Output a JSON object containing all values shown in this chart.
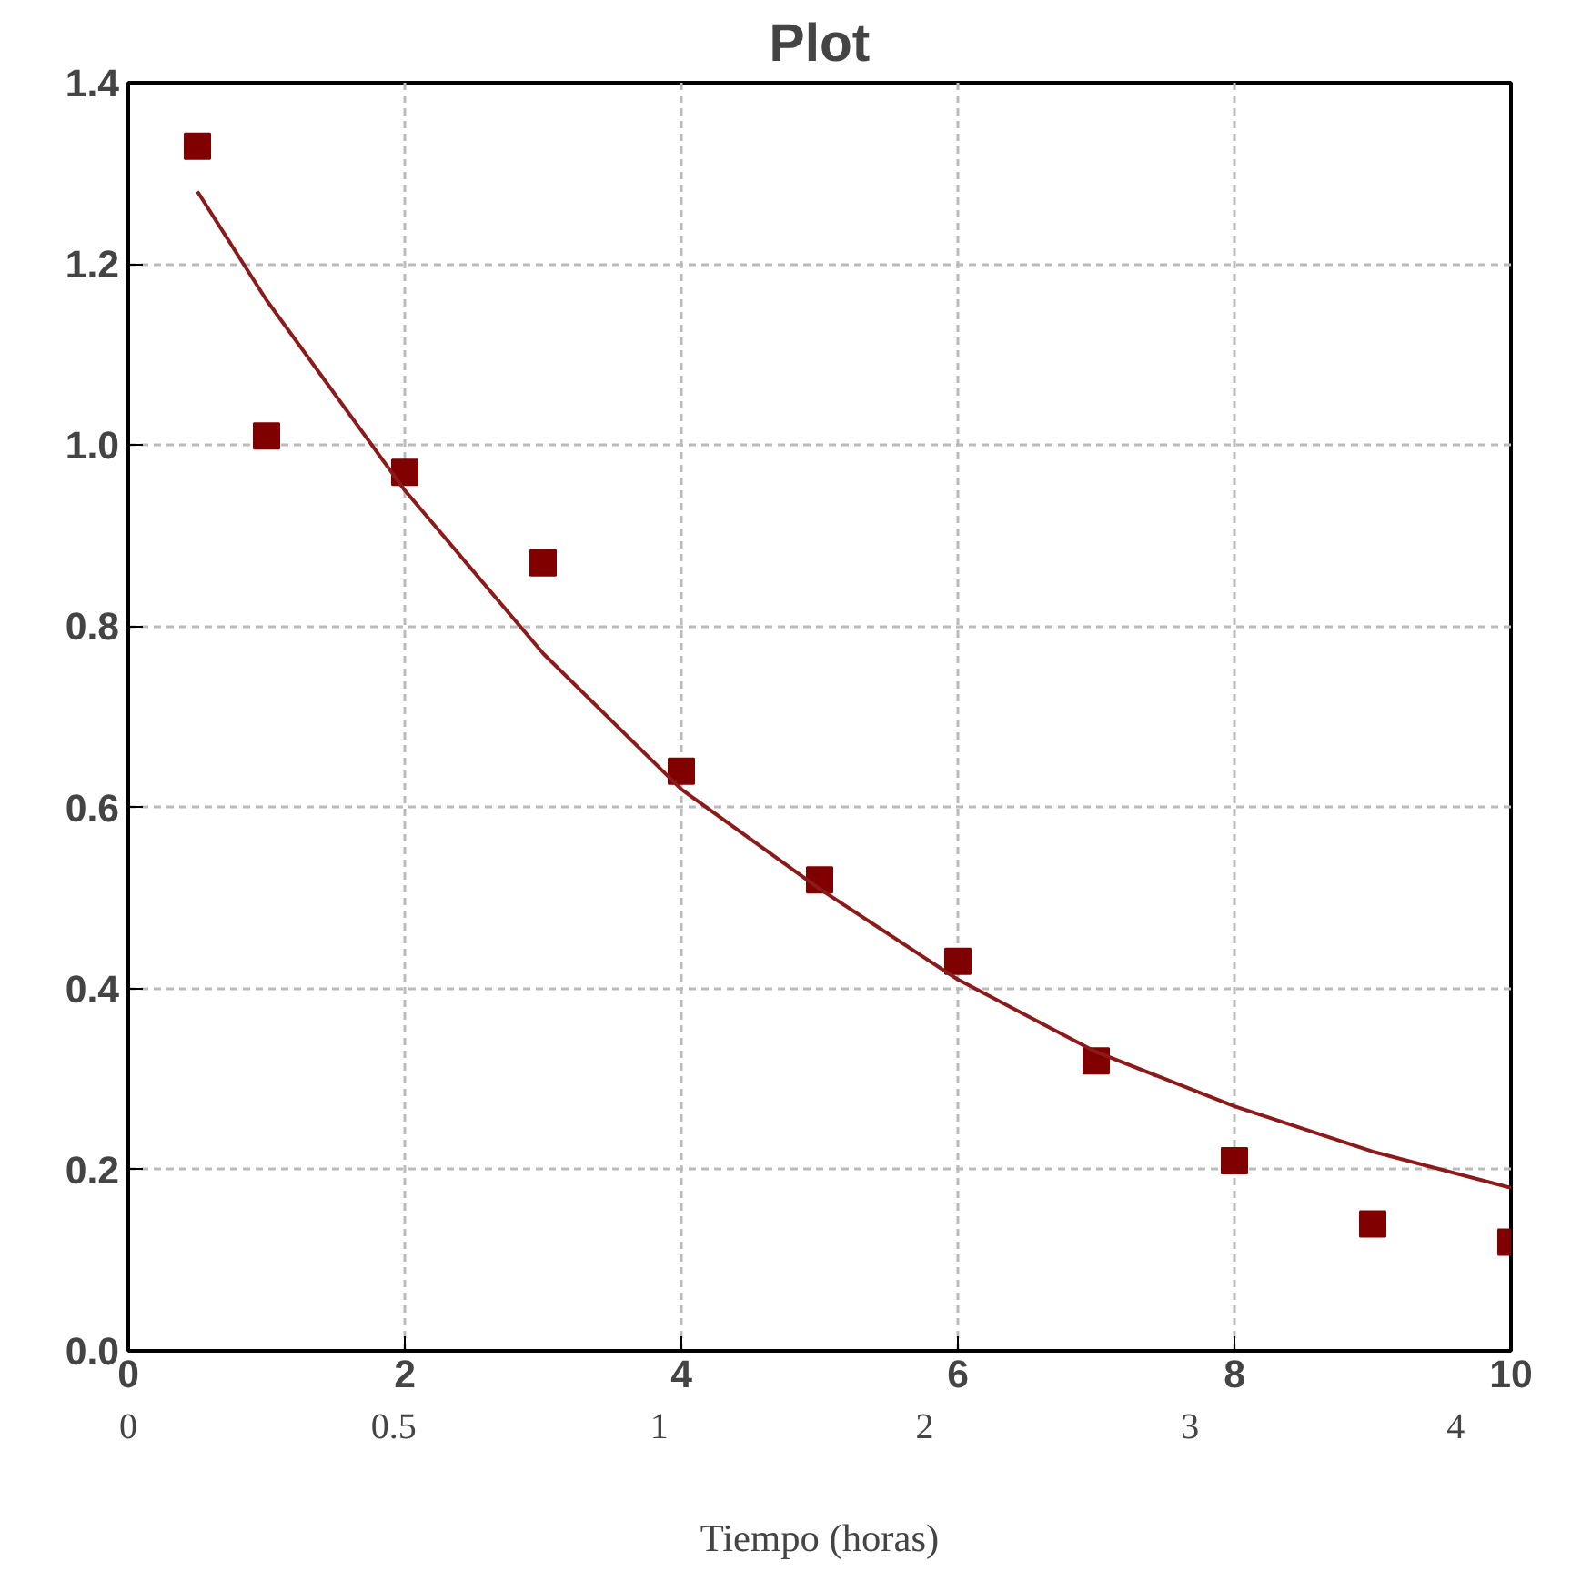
{
  "chart_data": {
    "type": "scatter",
    "title": "Plot",
    "xlabel": "Tiempo (horas)",
    "xlim": [
      0,
      10
    ],
    "xticks": [
      0,
      2,
      4,
      6,
      8,
      10
    ],
    "annotations": [
      "0",
      "0.5",
      "1",
      "2",
      "3",
      "4"
    ],
    "ylim": [
      0,
      1.4
    ],
    "yticks": [
      {
        "value": 0,
        "label": "0.0"
      },
      {
        "value": 0.2,
        "label": "0.2"
      },
      {
        "value": 0.4,
        "label": "0.4"
      },
      {
        "value": 0.6,
        "label": "0.6"
      },
      {
        "value": 0.8,
        "label": "0.8"
      },
      {
        "value": 1.0,
        "label": "1.0"
      },
      {
        "value": 1.2,
        "label": "1.2"
      },
      {
        "value": 1.4,
        "label": "1.4"
      }
    ],
    "grid": true,
    "series": [
      {
        "color": "#800000",
        "marker": "square",
        "x": [
          0.5,
          1,
          2,
          3,
          4,
          5,
          6,
          7,
          8,
          9,
          10
        ],
        "values": [
          1.33,
          1.01,
          0.97,
          0.87,
          0.64,
          0.52,
          0.43,
          0.32,
          0.21,
          0.14,
          0.12
        ]
      },
      {
        "type": "line",
        "color": "#8b1a1a",
        "line_style": "solid",
        "x": [
          0.5,
          1,
          2,
          3,
          4,
          5,
          6,
          7,
          8,
          9,
          10
        ],
        "values": [
          1.28,
          1.16,
          0.95,
          0.77,
          0.62,
          0.51,
          0.41,
          0.33,
          0.27,
          0.22,
          0.18
        ]
      }
    ]
  }
}
